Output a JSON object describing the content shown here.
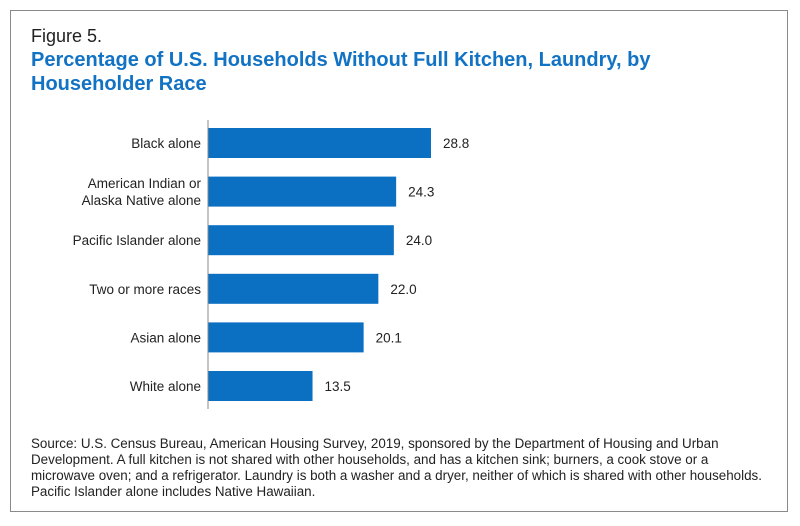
{
  "figure": {
    "label": "Figure 5.",
    "title": "Percentage of U.S. Households Without Full Kitchen, Laundry, by Householder Race",
    "source": "Source: U.S. Census Bureau, American Housing Survey, 2019, sponsored by the Department of Housing and Urban Development. A full kitchen is not shared with other households, and has a kitchen sink; burners, a cook stove or a microwave oven; and a refrigerator. Laundry is both a washer and a dryer, neither of which is shared with other households. Pacific Islander alone includes Native Hawaiian."
  },
  "colors": {
    "bar": "#0b6fc2",
    "title": "#1272c4",
    "text": "#222222",
    "axis": "#8a8a8a"
  },
  "chart_data": {
    "type": "bar",
    "orientation": "horizontal",
    "categories": [
      [
        "Black alone"
      ],
      [
        "American Indian or",
        "Alaska Native alone"
      ],
      [
        "Pacific Islander alone"
      ],
      [
        "Two or more races"
      ],
      [
        "Asian alone"
      ],
      [
        "White alone"
      ]
    ],
    "value_labels": [
      "28.8",
      "24.3",
      "24.0",
      "22.0",
      "20.1",
      "13.5"
    ],
    "values": [
      28.8,
      24.3,
      24.0,
      22.0,
      20.1,
      13.5
    ],
    "xlim": [
      0,
      40
    ],
    "grid": false,
    "legend": "none"
  }
}
